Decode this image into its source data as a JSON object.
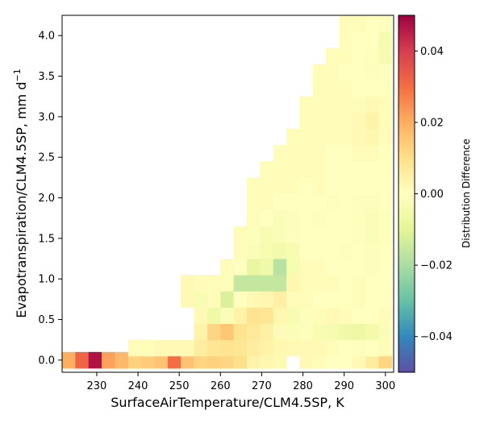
{
  "chart_data": {
    "type": "heatmap",
    "title": "",
    "xlabel": "SurfaceAirTemperature/CLM4.5SP,  K",
    "ylabel_main": "Evapotranspiration/CLM4.5SP,  mm d",
    "ylabel_sup": "−1",
    "xlim": [
      221.6,
      302.0
    ],
    "ylim": [
      -0.15,
      4.25
    ],
    "x_bin_width": 3.2,
    "y_bin_height": 0.2,
    "xticks": [
      230,
      240,
      250,
      260,
      270,
      280,
      290,
      300
    ],
    "xtick_labels": [
      "230",
      "240",
      "250",
      "260",
      "270",
      "280",
      "290",
      "300"
    ],
    "yticks": [
      0.0,
      0.5,
      1.0,
      1.5,
      2.0,
      2.5,
      3.0,
      3.5,
      4.0
    ],
    "ytick_labels": [
      "0.0",
      "0.5",
      "1.0",
      "1.5",
      "2.0",
      "2.5",
      "3.0",
      "3.5",
      "4.0"
    ],
    "colormap": "Spectral_r",
    "colorbar": {
      "label": "Distribution Difference",
      "range": [
        -0.05,
        0.05
      ],
      "ticks": [
        -0.04,
        -0.02,
        0.0,
        0.02,
        0.04
      ],
      "tick_labels": [
        "−0.04",
        "−0.02",
        "0.00",
        "0.02",
        "0.04"
      ]
    },
    "cells": [
      [
        223.2,
        0.0,
        0.02
      ],
      [
        226.4,
        0.0,
        0.032
      ],
      [
        229.6,
        0.0,
        0.047
      ],
      [
        232.8,
        0.0,
        0.022
      ],
      [
        236.0,
        0.0,
        0.018
      ],
      [
        239.2,
        0.0,
        0.013
      ],
      [
        242.4,
        0.0,
        0.014
      ],
      [
        245.6,
        0.0,
        0.016
      ],
      [
        248.8,
        0.0,
        0.03
      ],
      [
        252.0,
        0.0,
        0.016
      ],
      [
        255.2,
        0.0,
        0.012
      ],
      [
        258.4,
        0.0,
        0.013
      ],
      [
        261.6,
        0.0,
        0.012
      ],
      [
        264.8,
        0.0,
        0.01
      ],
      [
        268.0,
        0.0,
        0.004
      ],
      [
        271.2,
        0.0,
        0.003
      ],
      [
        274.4,
        0.0,
        0.002
      ],
      [
        280.8,
        0.0,
        0.002
      ],
      [
        284.0,
        0.0,
        0.001
      ],
      [
        287.2,
        0.0,
        0.0
      ],
      [
        290.4,
        0.0,
        0.0
      ],
      [
        293.6,
        0.0,
        0.002
      ],
      [
        296.8,
        0.0,
        0.006
      ],
      [
        300.0,
        0.0,
        0.012
      ],
      [
        239.2,
        0.15,
        0.001
      ],
      [
        242.4,
        0.15,
        0.001
      ],
      [
        245.6,
        0.15,
        0.002
      ],
      [
        248.8,
        0.15,
        0.002
      ],
      [
        252.0,
        0.15,
        0.002
      ],
      [
        255.2,
        0.15,
        0.006
      ],
      [
        258.4,
        0.15,
        0.008
      ],
      [
        261.6,
        0.15,
        0.009
      ],
      [
        264.8,
        0.15,
        0.008
      ],
      [
        268.0,
        0.15,
        0.006
      ],
      [
        271.2,
        0.15,
        0.004
      ],
      [
        274.4,
        0.15,
        0.003
      ],
      [
        277.6,
        0.15,
        0.002
      ],
      [
        280.8,
        0.15,
        0.002
      ],
      [
        284.0,
        0.15,
        0.002
      ],
      [
        287.2,
        0.15,
        0.001
      ],
      [
        290.4,
        0.15,
        0.0
      ],
      [
        293.6,
        0.15,
        -0.001
      ],
      [
        296.8,
        0.15,
        0.0
      ],
      [
        300.0,
        0.15,
        0.001
      ],
      [
        255.2,
        0.35,
        0.004
      ],
      [
        258.4,
        0.35,
        0.012
      ],
      [
        261.6,
        0.35,
        0.015
      ],
      [
        264.8,
        0.35,
        0.009
      ],
      [
        268.0,
        0.35,
        0.007
      ],
      [
        271.2,
        0.35,
        0.005
      ],
      [
        274.4,
        0.35,
        0.001
      ],
      [
        277.6,
        0.35,
        -0.002
      ],
      [
        280.8,
        0.35,
        -0.001
      ],
      [
        284.0,
        0.35,
        -0.003
      ],
      [
        287.2,
        0.35,
        -0.004
      ],
      [
        290.4,
        0.35,
        -0.006
      ],
      [
        293.6,
        0.35,
        -0.007
      ],
      [
        296.8,
        0.35,
        -0.005
      ],
      [
        300.0,
        0.35,
        -0.002
      ],
      [
        255.2,
        0.55,
        0.002
      ],
      [
        258.4,
        0.55,
        -0.006
      ],
      [
        261.6,
        0.55,
        -0.002
      ],
      [
        264.8,
        0.55,
        0.004
      ],
      [
        268.0,
        0.55,
        0.009
      ],
      [
        271.2,
        0.55,
        0.008
      ],
      [
        274.4,
        0.55,
        0.003
      ],
      [
        277.6,
        0.55,
        -0.003
      ],
      [
        280.8,
        0.55,
        -0.001
      ],
      [
        284.0,
        0.55,
        0.001
      ],
      [
        287.2,
        0.55,
        0.002
      ],
      [
        290.4,
        0.55,
        0.001
      ],
      [
        293.6,
        0.55,
        0.0
      ],
      [
        296.8,
        0.55,
        0.0
      ],
      [
        300.0,
        0.55,
        0.001
      ],
      [
        252.0,
        0.75,
        0.002
      ],
      [
        255.2,
        0.75,
        -0.003
      ],
      [
        258.4,
        0.75,
        0.001
      ],
      [
        261.6,
        0.75,
        -0.012
      ],
      [
        264.8,
        0.75,
        0.0
      ],
      [
        268.0,
        0.75,
        0.002
      ],
      [
        271.2,
        0.75,
        0.003
      ],
      [
        274.4,
        0.75,
        0.005
      ],
      [
        277.6,
        0.75,
        0.001
      ],
      [
        280.8,
        0.75,
        0.001
      ],
      [
        284.0,
        0.75,
        0.0
      ],
      [
        287.2,
        0.75,
        0.0
      ],
      [
        290.4,
        0.75,
        0.0
      ],
      [
        293.6,
        0.75,
        0.001
      ],
      [
        296.8,
        0.75,
        0.0
      ],
      [
        300.0,
        0.75,
        0.0
      ],
      [
        252.0,
        0.95,
        0.002
      ],
      [
        255.2,
        0.95,
        0.001
      ],
      [
        258.4,
        0.95,
        0.001
      ],
      [
        261.6,
        0.95,
        0.001
      ],
      [
        264.8,
        0.95,
        -0.016
      ],
      [
        268.0,
        0.95,
        -0.016
      ],
      [
        271.2,
        0.95,
        -0.016
      ],
      [
        274.4,
        0.95,
        -0.016
      ],
      [
        277.6,
        0.95,
        0.003
      ],
      [
        280.8,
        0.95,
        0.001
      ],
      [
        284.0,
        0.95,
        0.001
      ],
      [
        287.2,
        0.95,
        0.001
      ],
      [
        290.4,
        0.95,
        0.0
      ],
      [
        293.6,
        0.95,
        0.001
      ],
      [
        296.8,
        0.95,
        0.0
      ],
      [
        300.0,
        0.95,
        0.0
      ],
      [
        261.6,
        1.15,
        0.001
      ],
      [
        264.8,
        1.15,
        0.0
      ],
      [
        268.0,
        1.15,
        -0.008
      ],
      [
        271.2,
        1.15,
        -0.006
      ],
      [
        274.4,
        1.15,
        -0.018
      ],
      [
        277.6,
        1.15,
        -0.004
      ],
      [
        280.8,
        1.15,
        0.001
      ],
      [
        284.0,
        1.15,
        0.001
      ],
      [
        287.2,
        1.15,
        0.0
      ],
      [
        290.4,
        1.15,
        0.0
      ],
      [
        293.6,
        1.15,
        0.0
      ],
      [
        296.8,
        1.15,
        -0.001
      ],
      [
        300.0,
        1.15,
        0.0
      ],
      [
        264.8,
        1.35,
        0.001
      ],
      [
        268.0,
        1.35,
        -0.002
      ],
      [
        271.2,
        1.35,
        -0.004
      ],
      [
        274.4,
        1.35,
        -0.005
      ],
      [
        277.6,
        1.35,
        -0.003
      ],
      [
        280.8,
        1.35,
        0.0
      ],
      [
        284.0,
        1.35,
        0.0
      ],
      [
        287.2,
        1.35,
        0.0
      ],
      [
        290.4,
        1.35,
        -0.001
      ],
      [
        293.6,
        1.35,
        0.0
      ],
      [
        296.8,
        1.35,
        -0.001
      ],
      [
        300.0,
        1.35,
        0.0
      ],
      [
        264.8,
        1.55,
        0.001
      ],
      [
        268.0,
        1.55,
        -0.001
      ],
      [
        271.2,
        1.55,
        -0.003
      ],
      [
        274.4,
        1.55,
        -0.002
      ],
      [
        277.6,
        1.55,
        -0.001
      ],
      [
        280.8,
        1.55,
        0.0
      ],
      [
        284.0,
        1.55,
        0.0
      ],
      [
        287.2,
        1.55,
        0.0
      ],
      [
        290.4,
        1.55,
        0.0
      ],
      [
        293.6,
        1.55,
        -0.001
      ],
      [
        296.8,
        1.55,
        -0.002
      ],
      [
        300.0,
        1.55,
        -0.001
      ],
      [
        268.0,
        1.75,
        0.001
      ],
      [
        271.2,
        1.75,
        0.0
      ],
      [
        274.4,
        1.75,
        -0.002
      ],
      [
        277.6,
        1.75,
        -0.001
      ],
      [
        280.8,
        1.75,
        0.0
      ],
      [
        284.0,
        1.75,
        -0.001
      ],
      [
        287.2,
        1.75,
        0.0
      ],
      [
        290.4,
        1.75,
        0.0
      ],
      [
        293.6,
        1.75,
        -0.001
      ],
      [
        296.8,
        1.75,
        -0.002
      ],
      [
        300.0,
        1.75,
        -0.001
      ],
      [
        268.0,
        1.95,
        0.001
      ],
      [
        271.2,
        1.95,
        0.001
      ],
      [
        274.4,
        1.95,
        0.0
      ],
      [
        277.6,
        1.95,
        0.0
      ],
      [
        280.8,
        1.95,
        0.0
      ],
      [
        284.0,
        1.95,
        0.0
      ],
      [
        287.2,
        1.95,
        -0.001
      ],
      [
        290.4,
        1.95,
        0.0
      ],
      [
        293.6,
        1.95,
        -0.001
      ],
      [
        296.8,
        1.95,
        -0.001
      ],
      [
        300.0,
        1.95,
        0.0
      ],
      [
        268.0,
        2.15,
        0.001
      ],
      [
        271.2,
        2.15,
        0.001
      ],
      [
        274.4,
        2.15,
        0.001
      ],
      [
        277.6,
        2.15,
        0.001
      ],
      [
        280.8,
        2.15,
        0.0
      ],
      [
        284.0,
        2.15,
        0.001
      ],
      [
        287.2,
        2.15,
        0.0
      ],
      [
        290.4,
        2.15,
        0.0
      ],
      [
        293.6,
        2.15,
        0.0
      ],
      [
        296.8,
        2.15,
        0.0
      ],
      [
        300.0,
        2.15,
        0.0
      ],
      [
        271.2,
        2.35,
        0.001
      ],
      [
        274.4,
        2.35,
        0.001
      ],
      [
        277.6,
        2.35,
        0.001
      ],
      [
        280.8,
        2.35,
        0.001
      ],
      [
        284.0,
        2.35,
        0.001
      ],
      [
        287.2,
        2.35,
        0.0
      ],
      [
        290.4,
        2.35,
        0.0
      ],
      [
        293.6,
        2.35,
        0.0
      ],
      [
        296.8,
        2.35,
        0.0
      ],
      [
        300.0,
        2.35,
        0.0
      ],
      [
        274.4,
        2.55,
        0.001
      ],
      [
        277.6,
        2.55,
        0.001
      ],
      [
        280.8,
        2.55,
        0.001
      ],
      [
        284.0,
        2.55,
        0.001
      ],
      [
        287.2,
        2.55,
        0.0
      ],
      [
        290.4,
        2.55,
        0.0
      ],
      [
        293.6,
        2.55,
        0.001
      ],
      [
        296.8,
        2.55,
        0.001
      ],
      [
        300.0,
        2.55,
        0.0
      ],
      [
        277.6,
        2.75,
        0.001
      ],
      [
        280.8,
        2.75,
        0.001
      ],
      [
        284.0,
        2.75,
        0.001
      ],
      [
        287.2,
        2.75,
        0.001
      ],
      [
        290.4,
        2.75,
        0.001
      ],
      [
        293.6,
        2.75,
        0.002
      ],
      [
        296.8,
        2.75,
        0.003
      ],
      [
        300.0,
        2.75,
        0.001
      ],
      [
        280.8,
        2.95,
        0.001
      ],
      [
        284.0,
        2.95,
        0.001
      ],
      [
        287.2,
        2.95,
        0.001
      ],
      [
        290.4,
        2.95,
        0.001
      ],
      [
        293.6,
        2.95,
        0.002
      ],
      [
        296.8,
        2.95,
        0.004
      ],
      [
        300.0,
        2.95,
        0.001
      ],
      [
        280.8,
        3.15,
        0.001
      ],
      [
        284.0,
        3.15,
        0.001
      ],
      [
        287.2,
        3.15,
        0.001
      ],
      [
        290.4,
        3.15,
        0.001
      ],
      [
        293.6,
        3.15,
        0.001
      ],
      [
        296.8,
        3.15,
        0.002
      ],
      [
        300.0,
        3.15,
        0.001
      ],
      [
        284.0,
        3.35,
        0.001
      ],
      [
        287.2,
        3.35,
        0.001
      ],
      [
        290.4,
        3.35,
        0.001
      ],
      [
        293.6,
        3.35,
        0.0
      ],
      [
        296.8,
        3.35,
        0.0
      ],
      [
        300.0,
        3.35,
        0.0
      ],
      [
        284.0,
        3.55,
        0.001
      ],
      [
        287.2,
        3.55,
        0.001
      ],
      [
        290.4,
        3.55,
        0.0
      ],
      [
        293.6,
        3.55,
        0.0
      ],
      [
        296.8,
        3.55,
        -0.001
      ],
      [
        300.0,
        3.55,
        0.0
      ],
      [
        287.2,
        3.75,
        0.001
      ],
      [
        290.4,
        3.75,
        0.001
      ],
      [
        293.6,
        3.75,
        0.0
      ],
      [
        296.8,
        3.75,
        -0.001
      ],
      [
        300.0,
        3.75,
        -0.003
      ],
      [
        290.4,
        3.95,
        0.001
      ],
      [
        293.6,
        3.95,
        0.0
      ],
      [
        296.8,
        3.95,
        0.0
      ],
      [
        300.0,
        3.95,
        -0.004
      ],
      [
        290.4,
        4.15,
        0.001
      ],
      [
        293.6,
        4.15,
        0.001
      ],
      [
        296.8,
        4.15,
        0.0
      ],
      [
        300.0,
        4.15,
        -0.001
      ]
    ]
  }
}
